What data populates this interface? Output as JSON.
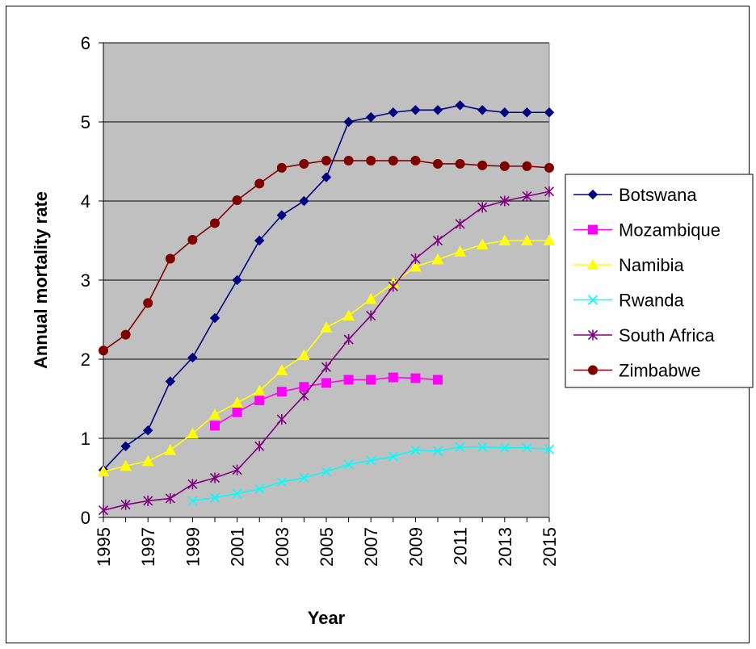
{
  "chart_data": {
    "type": "line",
    "title": "",
    "xlabel": "Year",
    "ylabel": "Annual mortality rate",
    "xlim": [
      1995,
      2015
    ],
    "ylim": [
      0,
      6
    ],
    "y_ticks": [
      0,
      1,
      2,
      3,
      4,
      5,
      6
    ],
    "x_tick_labels": [
      "1995",
      "1997",
      "1999",
      "2001",
      "2003",
      "2005",
      "2007",
      "2009",
      "2011",
      "2013",
      "2015"
    ],
    "grid": "horizontal",
    "plot_background": "#c0c0c0",
    "legend_position": "right",
    "series": [
      {
        "name": "Botswana",
        "color": "#000080",
        "marker": "diamond",
        "x": [
          1995,
          1996,
          1997,
          1998,
          1999,
          2000,
          2001,
          2002,
          2003,
          2004,
          2005,
          2006,
          2007,
          2008,
          2009,
          2010,
          2011,
          2012,
          2013,
          2014,
          2015
        ],
        "values": [
          0.6,
          0.9,
          1.1,
          1.72,
          2.02,
          2.52,
          3.0,
          3.5,
          3.82,
          4.0,
          4.3,
          5.0,
          5.06,
          5.12,
          5.15,
          5.15,
          5.21,
          5.15,
          5.12,
          5.12,
          5.12
        ]
      },
      {
        "name": "Mozambique",
        "color": "#ff00ff",
        "marker": "square",
        "x": [
          2000,
          2001,
          2002,
          2003,
          2004,
          2005,
          2006,
          2007,
          2008,
          2009,
          2010
        ],
        "values": [
          1.16,
          1.33,
          1.48,
          1.59,
          1.65,
          1.7,
          1.74,
          1.74,
          1.77,
          1.76,
          1.74
        ]
      },
      {
        "name": "Namibia",
        "color": "#ffff00",
        "marker": "triangle",
        "x": [
          1995,
          1996,
          1997,
          1998,
          1999,
          2000,
          2001,
          2002,
          2003,
          2004,
          2005,
          2006,
          2007,
          2008,
          2009,
          2010,
          2011,
          2012,
          2013,
          2014,
          2015
        ],
        "values": [
          0.58,
          0.65,
          0.71,
          0.85,
          1.06,
          1.3,
          1.45,
          1.6,
          1.86,
          2.05,
          2.4,
          2.55,
          2.76,
          2.96,
          3.17,
          3.26,
          3.36,
          3.45,
          3.5,
          3.5,
          3.5
        ]
      },
      {
        "name": "Rwanda",
        "color": "#00ffff",
        "marker": "x",
        "x": [
          1999,
          2000,
          2001,
          2002,
          2003,
          2004,
          2005,
          2006,
          2007,
          2008,
          2009,
          2010,
          2011,
          2012,
          2013,
          2014,
          2015
        ],
        "values": [
          0.21,
          0.25,
          0.3,
          0.36,
          0.45,
          0.5,
          0.58,
          0.67,
          0.72,
          0.77,
          0.85,
          0.84,
          0.89,
          0.89,
          0.88,
          0.88,
          0.86
        ]
      },
      {
        "name": "South Africa",
        "color": "#800080",
        "marker": "star",
        "x": [
          1995,
          1996,
          1997,
          1998,
          1999,
          2000,
          2001,
          2002,
          2003,
          2004,
          2005,
          2006,
          2007,
          2008,
          2009,
          2010,
          2011,
          2012,
          2013,
          2014,
          2015
        ],
        "values": [
          0.09,
          0.16,
          0.21,
          0.24,
          0.42,
          0.5,
          0.6,
          0.9,
          1.24,
          1.54,
          1.9,
          2.25,
          2.55,
          2.92,
          3.27,
          3.5,
          3.71,
          3.92,
          4.0,
          4.06,
          4.12
        ]
      },
      {
        "name": "Zimbabwe",
        "color": "#800000",
        "marker": "circle",
        "x": [
          1995,
          1996,
          1997,
          1998,
          1999,
          2000,
          2001,
          2002,
          2003,
          2004,
          2005,
          2006,
          2007,
          2008,
          2009,
          2010,
          2011,
          2012,
          2013,
          2014,
          2015
        ],
        "values": [
          2.11,
          2.31,
          2.71,
          3.27,
          3.51,
          3.72,
          4.01,
          4.22,
          4.42,
          4.47,
          4.51,
          4.51,
          4.51,
          4.51,
          4.51,
          4.47,
          4.47,
          4.45,
          4.44,
          4.44,
          4.42
        ]
      }
    ]
  }
}
